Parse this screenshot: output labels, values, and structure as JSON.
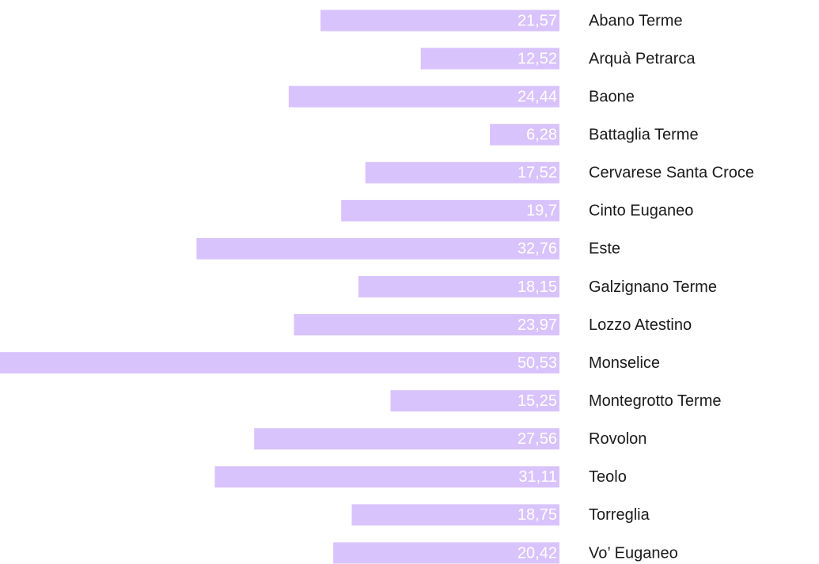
{
  "chart_data": {
    "type": "bar",
    "orientation": "horizontal",
    "categories": [
      "Abano Terme",
      "Arquà Petrarca",
      "Baone",
      "Battaglia Terme",
      "Cervarese Santa Croce",
      "Cinto Euganeo",
      "Este",
      "Galzignano Terme",
      "Lozzo Atestino",
      "Monselice",
      "Montegrotto Terme",
      "Rovolon",
      "Teolo",
      "Torreglia",
      "Vo’ Euganeo"
    ],
    "values": [
      21.57,
      12.52,
      24.44,
      6.28,
      17.52,
      19.7,
      32.76,
      18.15,
      23.97,
      50.53,
      15.25,
      27.56,
      31.11,
      18.75,
      20.42
    ],
    "value_labels": [
      "21,57",
      "12,52",
      "24,44",
      "6,28",
      "17,52",
      "19,7",
      "32,76",
      "18,15",
      "23,97",
      "50,53",
      "15,25",
      "27,56",
      "31,11",
      "18,75",
      "20,42"
    ],
    "color": "#d9c3fc"
  }
}
